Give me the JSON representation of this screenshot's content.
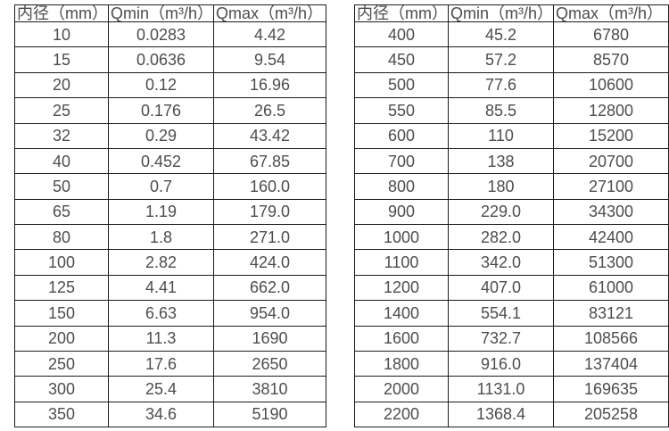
{
  "colors": {
    "background": "#ffffff",
    "border": "#1c1c1c",
    "text": "#4d4d4d"
  },
  "tables": [
    {
      "name": "flow-spec-table-small-diameters",
      "headers": [
        "内径（mm）",
        "Qmin（m³/h）",
        "Qmax（m³/h）"
      ],
      "rows": [
        [
          "10",
          "0.0283",
          "4.42"
        ],
        [
          "15",
          "0.0636",
          "9.54"
        ],
        [
          "20",
          "0.12",
          "16.96"
        ],
        [
          "25",
          "0.176",
          "26.5"
        ],
        [
          "32",
          "0.29",
          "43.42"
        ],
        [
          "40",
          "0.452",
          "67.85"
        ],
        [
          "50",
          "0.7",
          "160.0"
        ],
        [
          "65",
          "1.19",
          "179.0"
        ],
        [
          "80",
          "1.8",
          "271.0"
        ],
        [
          "100",
          "2.82",
          "424.0"
        ],
        [
          "125",
          "4.41",
          "662.0"
        ],
        [
          "150",
          "6.63",
          "954.0"
        ],
        [
          "200",
          "11.3",
          "1690"
        ],
        [
          "250",
          "17.6",
          "2650"
        ],
        [
          "300",
          "25.4",
          "3810"
        ],
        [
          "350",
          "34.6",
          "5190"
        ]
      ]
    },
    {
      "name": "flow-spec-table-large-diameters",
      "headers": [
        "内径（mm）",
        "Qmin（m³/h）",
        "Qmax（m³/h）"
      ],
      "rows": [
        [
          "400",
          "45.2",
          "6780"
        ],
        [
          "450",
          "57.2",
          "8570"
        ],
        [
          "500",
          "77.6",
          "10600"
        ],
        [
          "550",
          "85.5",
          "12800"
        ],
        [
          "600",
          "110",
          "15200"
        ],
        [
          "700",
          "138",
          "20700"
        ],
        [
          "800",
          "180",
          "27100"
        ],
        [
          "900",
          "229.0",
          "34300"
        ],
        [
          "1000",
          "282.0",
          "42400"
        ],
        [
          "1100",
          "342.0",
          "51300"
        ],
        [
          "1200",
          "407.0",
          "61000"
        ],
        [
          "1400",
          "554.1",
          "83121"
        ],
        [
          "1600",
          "732.7",
          "108566"
        ],
        [
          "1800",
          "916.0",
          "137404"
        ],
        [
          "2000",
          "1131.0",
          "169635"
        ],
        [
          "2200",
          "1368.4",
          "205258"
        ]
      ]
    }
  ]
}
